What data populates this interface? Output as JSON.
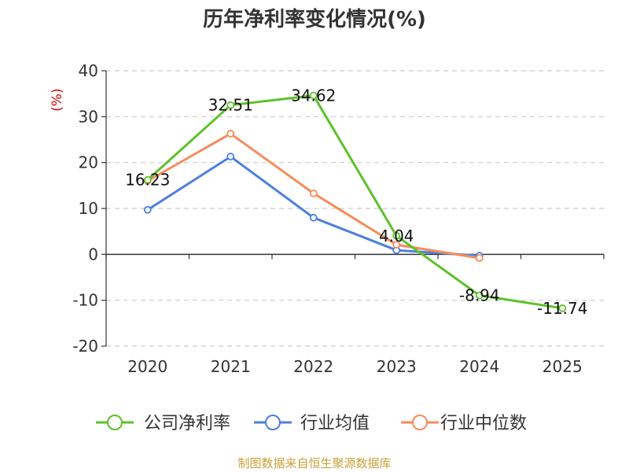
{
  "title": "历年净利率变化情况(%)",
  "source": "制图数据来自恒生聚源数据库",
  "chart_data": {
    "type": "line",
    "x": [
      "2020",
      "2021",
      "2022",
      "2023",
      "2024",
      "2025"
    ],
    "ylabel": "(%)",
    "ylim": [
      -20,
      40
    ],
    "yticks": [
      40,
      30,
      20,
      10,
      0,
      -10,
      -20
    ],
    "grid": true,
    "legend_position": "bottom",
    "series": [
      {
        "name": "公司净利率",
        "color": "#5dc12a",
        "values": [
          16.23,
          32.51,
          34.62,
          4.04,
          -8.94,
          -11.74
        ],
        "labels": [
          "16.23",
          "32.51",
          "34.62",
          "4.04",
          "-8.94",
          "-11.74"
        ]
      },
      {
        "name": "行业均值",
        "color": "#4e7fe0",
        "values": [
          9.7,
          21.3,
          8.0,
          0.9,
          -0.3,
          null
        ]
      },
      {
        "name": "行业中位数",
        "color": "#f58c5b",
        "values": [
          16.0,
          26.3,
          13.3,
          2.1,
          -0.8,
          null
        ]
      }
    ]
  }
}
